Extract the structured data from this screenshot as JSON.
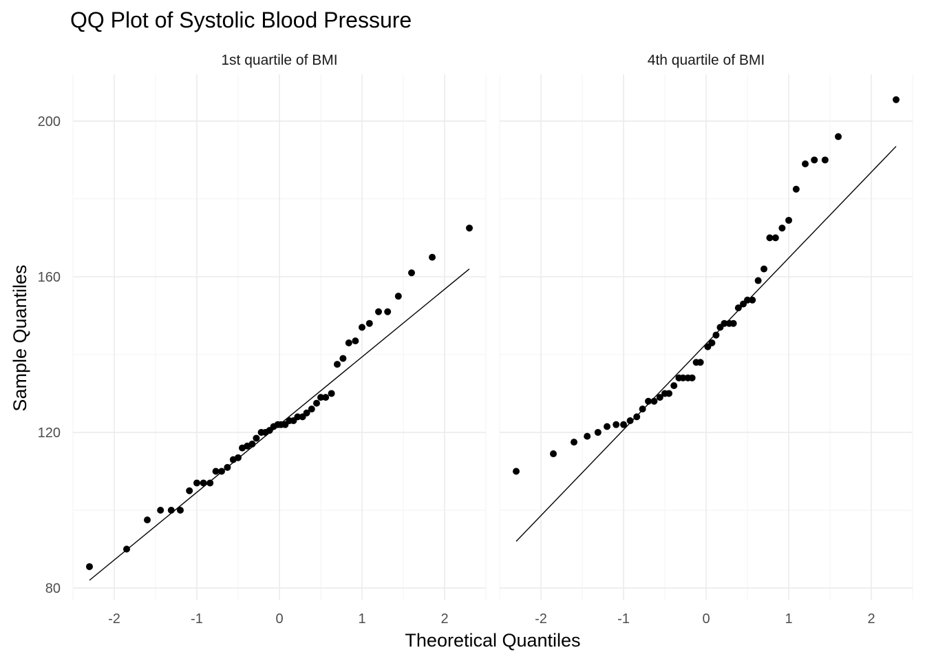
{
  "chart_data": {
    "type": "scatter",
    "title": "QQ Plot of Systolic Blood Pressure",
    "xlabel": "Theoretical Quantiles",
    "ylabel": "Sample Quantiles",
    "xlim": [
      -2.5,
      2.5
    ],
    "ylim": [
      77,
      212
    ],
    "x_ticks": [
      -2,
      -1,
      0,
      1,
      2
    ],
    "y_ticks": [
      80,
      120,
      160,
      200
    ],
    "grid": true,
    "legend": "none",
    "point_color": "#000000",
    "panels": [
      {
        "label": "1st quartile of BMI",
        "points": [
          [
            -2.3,
            85.5
          ],
          [
            -1.85,
            90
          ],
          [
            -1.6,
            97.5
          ],
          [
            -1.44,
            100
          ],
          [
            -1.31,
            100
          ],
          [
            -1.2,
            100
          ],
          [
            -1.09,
            105
          ],
          [
            -1.0,
            107
          ],
          [
            -0.92,
            107
          ],
          [
            -0.84,
            107
          ],
          [
            -0.77,
            110
          ],
          [
            -0.7,
            110
          ],
          [
            -0.63,
            111
          ],
          [
            -0.56,
            113
          ],
          [
            -0.5,
            113.5
          ],
          [
            -0.45,
            116
          ],
          [
            -0.39,
            116.5
          ],
          [
            -0.33,
            117
          ],
          [
            -0.28,
            118.5
          ],
          [
            -0.22,
            120
          ],
          [
            -0.17,
            120
          ],
          [
            -0.12,
            120.5
          ],
          [
            -0.07,
            121.5
          ],
          [
            -0.02,
            122
          ],
          [
            0.02,
            122
          ],
          [
            0.07,
            122
          ],
          [
            0.12,
            123
          ],
          [
            0.17,
            123
          ],
          [
            0.22,
            124
          ],
          [
            0.28,
            124
          ],
          [
            0.33,
            125
          ],
          [
            0.39,
            126
          ],
          [
            0.45,
            127.5
          ],
          [
            0.5,
            129
          ],
          [
            0.56,
            129
          ],
          [
            0.63,
            130
          ],
          [
            0.7,
            137.5
          ],
          [
            0.77,
            139
          ],
          [
            0.84,
            143
          ],
          [
            0.92,
            143.5
          ],
          [
            1.0,
            147
          ],
          [
            1.09,
            148
          ],
          [
            1.2,
            151
          ],
          [
            1.31,
            151
          ],
          [
            1.44,
            155
          ],
          [
            1.6,
            161
          ],
          [
            1.85,
            165
          ],
          [
            2.3,
            172.5
          ]
        ],
        "ref_line": [
          [
            -2.3,
            82
          ],
          [
            2.3,
            162
          ]
        ]
      },
      {
        "label": "4th quartile of BMI",
        "points": [
          [
            -2.3,
            110
          ],
          [
            -1.85,
            114.5
          ],
          [
            -1.6,
            117.5
          ],
          [
            -1.44,
            119
          ],
          [
            -1.31,
            120
          ],
          [
            -1.2,
            121.5
          ],
          [
            -1.09,
            122
          ],
          [
            -1.0,
            122
          ],
          [
            -0.92,
            123
          ],
          [
            -0.84,
            124
          ],
          [
            -0.77,
            126
          ],
          [
            -0.7,
            128
          ],
          [
            -0.63,
            128
          ],
          [
            -0.56,
            129
          ],
          [
            -0.5,
            130
          ],
          [
            -0.45,
            130
          ],
          [
            -0.39,
            132
          ],
          [
            -0.33,
            134
          ],
          [
            -0.28,
            134
          ],
          [
            -0.22,
            134
          ],
          [
            -0.17,
            134
          ],
          [
            -0.12,
            138
          ],
          [
            -0.07,
            138
          ],
          [
            0.02,
            142
          ],
          [
            0.07,
            143
          ],
          [
            0.12,
            145
          ],
          [
            0.17,
            147
          ],
          [
            0.22,
            148
          ],
          [
            0.28,
            148
          ],
          [
            0.33,
            148
          ],
          [
            0.39,
            152
          ],
          [
            0.45,
            153
          ],
          [
            0.5,
            154
          ],
          [
            0.56,
            154
          ],
          [
            0.63,
            159
          ],
          [
            0.7,
            162
          ],
          [
            0.77,
            170
          ],
          [
            0.84,
            170
          ],
          [
            0.92,
            172.5
          ],
          [
            1.0,
            174.5
          ],
          [
            1.09,
            182.5
          ],
          [
            1.2,
            189
          ],
          [
            1.31,
            190
          ],
          [
            1.44,
            190
          ],
          [
            1.6,
            196
          ],
          [
            2.3,
            205.5
          ]
        ],
        "ref_line": [
          [
            -2.3,
            92
          ],
          [
            2.3,
            193.5
          ]
        ]
      }
    ]
  }
}
